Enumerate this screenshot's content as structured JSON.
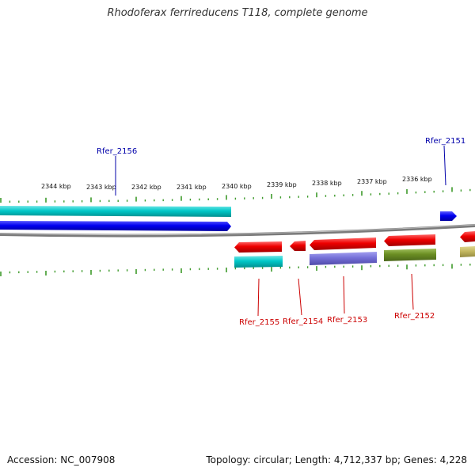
{
  "title": "Rhodoferax ferrireducens T118, complete genome",
  "footer": {
    "accession": "Accession: NC_007908",
    "summary": "Topology: circular; Length: 4,712,337 bp; Genes: 4,228"
  },
  "ruler": {
    "labels": [
      "2344 kbp",
      "2343 kbp",
      "2342 kbp",
      "2341 kbp",
      "2340 kbp",
      "2339 kbp",
      "2338 kbp",
      "2337 kbp",
      "2336 kbp"
    ]
  },
  "colors": {
    "tick": "#3d9a2a",
    "backbone": "#8a8a8a",
    "forward_label": "#0000aa",
    "reverse_label": "#cc0000"
  },
  "genes_top": [
    {
      "label": "Rfer_2156",
      "color": "#0000aa"
    },
    {
      "label": "Rfer_2151",
      "color": "#0000aa"
    }
  ],
  "genes_bottom": [
    {
      "label": "Rfer_2155",
      "color": "#cc0000"
    },
    {
      "label": "Rfer_2154",
      "color": "#cc0000"
    },
    {
      "label": "Rfer_2153",
      "color": "#cc0000"
    },
    {
      "label": "Rfer_2152",
      "color": "#cc0000"
    }
  ]
}
